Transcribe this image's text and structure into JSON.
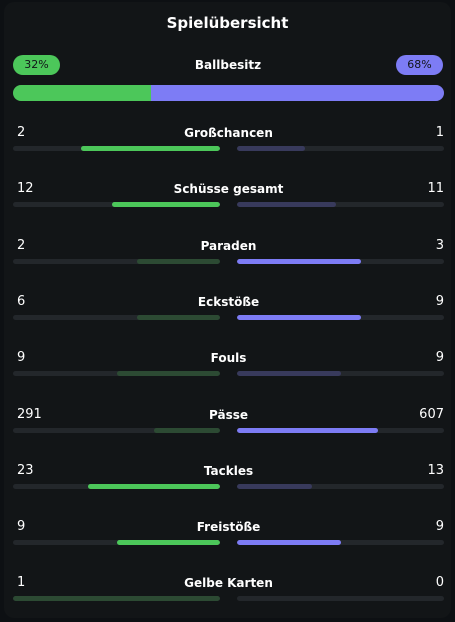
{
  "title": "Spielübersicht",
  "colors": {
    "home": "#4cc75a",
    "home_dim": "#2c4a33",
    "away": "#7d7cf5",
    "away_dim": "#383a5c",
    "track": "#23272b"
  },
  "possession": {
    "label": "Ballbesitz",
    "home_text": "32%",
    "away_text": "68%",
    "home_pct": 32,
    "away_pct": 68
  },
  "stats": [
    {
      "label": "Großchancen",
      "home": "2",
      "away": "1",
      "home_frac": 0.67,
      "away_frac": 0.33,
      "leader": "home"
    },
    {
      "label": "Schüsse gesamt",
      "home": "12",
      "away": "11",
      "home_frac": 0.52,
      "away_frac": 0.48,
      "leader": "home"
    },
    {
      "label": "Paraden",
      "home": "2",
      "away": "3",
      "home_frac": 0.4,
      "away_frac": 0.6,
      "leader": "away"
    },
    {
      "label": "Eckstöße",
      "home": "6",
      "away": "9",
      "home_frac": 0.4,
      "away_frac": 0.6,
      "leader": "away"
    },
    {
      "label": "Fouls",
      "home": "9",
      "away": "9",
      "home_frac": 0.5,
      "away_frac": 0.5,
      "leader": "none"
    },
    {
      "label": "Pässe",
      "home": "291",
      "away": "607",
      "home_frac": 0.32,
      "away_frac": 0.68,
      "leader": "away"
    },
    {
      "label": "Tackles",
      "home": "23",
      "away": "13",
      "home_frac": 0.64,
      "away_frac": 0.36,
      "leader": "home"
    },
    {
      "label": "Freistöße",
      "home": "9",
      "away": "9",
      "home_frac": 0.5,
      "away_frac": 0.5,
      "leader": "both"
    },
    {
      "label": "Gelbe Karten",
      "home": "1",
      "away": "0",
      "home_frac": 1.0,
      "away_frac": 0.0,
      "leader": "none"
    }
  ]
}
